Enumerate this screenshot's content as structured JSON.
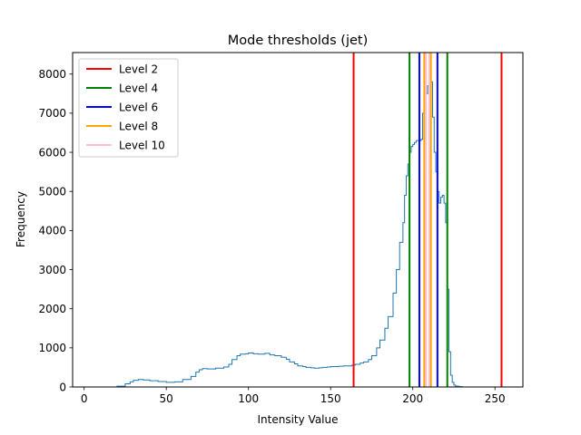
{
  "chart_data": {
    "type": "line",
    "title": "Mode thresholds (jet)",
    "xlabel": "Intensity Value",
    "ylabel": "Frequency",
    "xlim": [
      -7,
      267
    ],
    "ylim": [
      0,
      8550
    ],
    "xticks": [
      0,
      50,
      100,
      150,
      200,
      250
    ],
    "yticks": [
      0,
      1000,
      2000,
      3000,
      4000,
      5000,
      6000,
      7000,
      8000
    ],
    "grid": false,
    "legend_position": "top-left",
    "histogram": {
      "name": "",
      "color": "#1f77b4",
      "x": [
        0,
        5,
        10,
        15,
        20,
        25,
        28,
        30,
        33,
        36,
        40,
        45,
        50,
        55,
        60,
        65,
        68,
        70,
        72,
        75,
        80,
        85,
        88,
        90,
        93,
        95,
        98,
        100,
        103,
        106,
        110,
        113,
        116,
        120,
        123,
        125,
        128,
        130,
        133,
        135,
        138,
        140,
        143,
        145,
        148,
        150,
        153,
        155,
        158,
        160,
        163,
        165,
        168,
        170,
        173,
        175,
        178,
        180,
        183,
        185,
        188,
        190,
        192,
        194,
        195,
        196,
        197,
        198,
        199,
        200,
        201,
        202,
        203,
        204,
        205,
        206,
        207,
        208,
        209,
        210,
        211,
        212,
        213,
        214,
        215,
        216,
        217,
        218,
        219,
        220,
        221,
        222,
        223,
        224,
        225,
        226,
        228,
        230,
        232,
        235,
        240,
        245,
        250,
        255
      ],
      "y": [
        0,
        0,
        0,
        0,
        20,
        80,
        130,
        170,
        190,
        180,
        160,
        140,
        120,
        130,
        190,
        270,
        380,
        440,
        470,
        460,
        480,
        510,
        580,
        700,
        800,
        840,
        850,
        870,
        850,
        840,
        860,
        820,
        800,
        760,
        710,
        640,
        590,
        540,
        520,
        500,
        490,
        480,
        490,
        500,
        510,
        520,
        520,
        530,
        540,
        540,
        560,
        580,
        610,
        640,
        700,
        800,
        1000,
        1200,
        1500,
        1800,
        2400,
        3000,
        3700,
        4200,
        4900,
        5400,
        5700,
        6000,
        6150,
        6200,
        6250,
        6300,
        6300,
        6300,
        6330,
        7000,
        7200,
        7500,
        7700,
        7900,
        7800,
        6900,
        6000,
        5500,
        5000,
        4700,
        4850,
        4900,
        4700,
        4200,
        2500,
        900,
        300,
        120,
        50,
        20,
        10,
        0,
        0,
        0,
        0,
        0,
        0,
        0
      ]
    },
    "thresholds": [
      {
        "name": "Level 2",
        "color": "#ff0000",
        "x": [
          164,
          254
        ]
      },
      {
        "name": "Level 4",
        "color": "#008000",
        "x": [
          198,
          221
        ]
      },
      {
        "name": "Level 6",
        "color": "#0000ff",
        "x": [
          204,
          215
        ]
      },
      {
        "name": "Level 8",
        "color": "#ffa500",
        "x": [
          207,
          211
        ]
      },
      {
        "name": "Level 10",
        "color": "#ffc0cb",
        "x": [
          208,
          210
        ]
      }
    ]
  }
}
